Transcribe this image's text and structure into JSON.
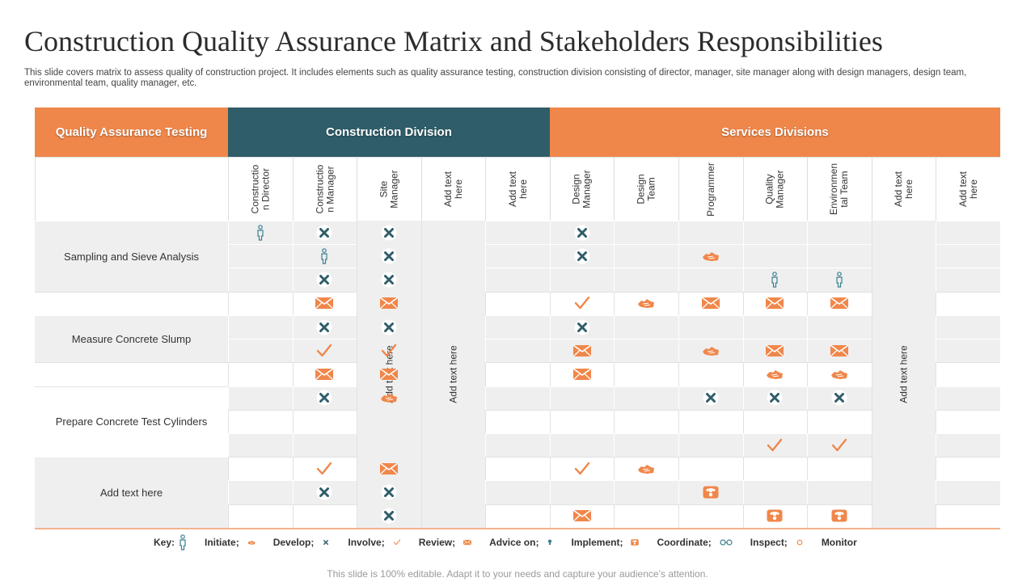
{
  "title": "Construction Quality Assurance Matrix and Stakeholders Responsibilities",
  "subtitle": "This slide covers matrix to assess quality of construction project. It includes elements such as quality assurance testing, construction division consisting of director, manager, site manager  along with design managers, design team, environmental team, quality manager, etc.",
  "colors": {
    "orange": "#f0874a",
    "teal": "#2f5d69",
    "gray_row": "#efefef"
  },
  "header": {
    "qa_testing": "Quality Assurance  Testing",
    "construction_division": "Construction Division",
    "services_divisions": "Services Divisions"
  },
  "roles": [
    "Constructio\nn Director",
    "Constructio\nn Manager",
    "Site\nManager",
    "Add text\nhere",
    "Add text\nhere",
    "Design\nManager",
    "Design\nTeam",
    "Programmer",
    "Quality\nManager",
    "Environmen\ntal Team",
    "Add text\nhere",
    "Add text\nhere"
  ],
  "row_labels": [
    "Sampling and Sieve Analysis",
    "Measure Concrete Slump",
    "Prepare Concrete Test Cylinders",
    "Add text here"
  ],
  "merged_columns": [
    "Add text here",
    "Add text here",
    "Add text here"
  ],
  "symbols": [
    {
      "row": 0,
      "col": 0,
      "icon": "person-icon"
    },
    {
      "row": 0,
      "col": 1,
      "icon": "cross-icon"
    },
    {
      "row": 0,
      "col": 2,
      "icon": "cross-icon"
    },
    {
      "row": 0,
      "col": 5,
      "icon": "cross-icon"
    },
    {
      "row": 1,
      "col": 1,
      "icon": "person-icon"
    },
    {
      "row": 1,
      "col": 2,
      "icon": "cross-icon"
    },
    {
      "row": 1,
      "col": 5,
      "icon": "cross-icon"
    },
    {
      "row": 1,
      "col": 7,
      "icon": "hand-icon"
    },
    {
      "row": 2,
      "col": 1,
      "icon": "cross-icon"
    },
    {
      "row": 2,
      "col": 2,
      "icon": "cross-icon"
    },
    {
      "row": 2,
      "col": 8,
      "icon": "person-icon"
    },
    {
      "row": 2,
      "col": 9,
      "icon": "person-icon"
    },
    {
      "row": 3,
      "col": 1,
      "icon": "envelope-icon"
    },
    {
      "row": 3,
      "col": 2,
      "icon": "envelope-icon"
    },
    {
      "row": 3,
      "col": 5,
      "icon": "check-icon"
    },
    {
      "row": 3,
      "col": 6,
      "icon": "hand-icon"
    },
    {
      "row": 3,
      "col": 7,
      "icon": "envelope-icon"
    },
    {
      "row": 3,
      "col": 8,
      "icon": "envelope-icon"
    },
    {
      "row": 3,
      "col": 9,
      "icon": "envelope-icon"
    },
    {
      "row": 4,
      "col": 1,
      "icon": "cross-icon"
    },
    {
      "row": 4,
      "col": 2,
      "icon": "cross-icon"
    },
    {
      "row": 4,
      "col": 5,
      "icon": "cross-icon"
    },
    {
      "row": 5,
      "col": 1,
      "icon": "check-icon"
    },
    {
      "row": 5,
      "col": 2,
      "icon": "check-icon"
    },
    {
      "row": 5,
      "col": 5,
      "icon": "envelope-icon"
    },
    {
      "row": 5,
      "col": 7,
      "icon": "hand-icon"
    },
    {
      "row": 5,
      "col": 8,
      "icon": "envelope-icon"
    },
    {
      "row": 5,
      "col": 9,
      "icon": "envelope-icon"
    },
    {
      "row": 6,
      "col": 1,
      "icon": "envelope-icon"
    },
    {
      "row": 6,
      "col": 2,
      "icon": "envelope-icon"
    },
    {
      "row": 6,
      "col": 5,
      "icon": "envelope-icon"
    },
    {
      "row": 6,
      "col": 8,
      "icon": "hand-icon"
    },
    {
      "row": 6,
      "col": 9,
      "icon": "hand-icon"
    },
    {
      "row": 7,
      "col": 1,
      "icon": "cross-icon"
    },
    {
      "row": 7,
      "col": 2,
      "icon": "hand-icon"
    },
    {
      "row": 7,
      "col": 7,
      "icon": "cross-icon"
    },
    {
      "row": 7,
      "col": 8,
      "icon": "cross-icon"
    },
    {
      "row": 7,
      "col": 9,
      "icon": "cross-icon"
    },
    {
      "row": 9,
      "col": 8,
      "icon": "check-icon"
    },
    {
      "row": 9,
      "col": 9,
      "icon": "check-icon"
    },
    {
      "row": 10,
      "col": 1,
      "icon": "check-icon"
    },
    {
      "row": 10,
      "col": 2,
      "icon": "envelope-icon"
    },
    {
      "row": 10,
      "col": 5,
      "icon": "check-icon"
    },
    {
      "row": 10,
      "col": 6,
      "icon": "hand-icon"
    },
    {
      "row": 11,
      "col": 1,
      "icon": "cross-icon"
    },
    {
      "row": 11,
      "col": 2,
      "icon": "cross-icon"
    },
    {
      "row": 11,
      "col": 7,
      "icon": "phone-icon"
    },
    {
      "row": 12,
      "col": 2,
      "icon": "cross-icon"
    },
    {
      "row": 12,
      "col": 5,
      "icon": "envelope-icon"
    },
    {
      "row": 12,
      "col": 8,
      "icon": "phone-icon"
    },
    {
      "row": 12,
      "col": 9,
      "icon": "phone-icon"
    }
  ],
  "key": {
    "label": "Key:",
    "items": [
      {
        "label": "Initiate;",
        "icon": "hand-icon"
      },
      {
        "label": "Develop;",
        "icon": "cross-icon"
      },
      {
        "label": "Involve;",
        "icon": "check-icon"
      },
      {
        "label": "Review;",
        "icon": "envelope-icon"
      },
      {
        "label": "Advice on;",
        "icon": "bulb-icon"
      },
      {
        "label": "Implement;",
        "icon": "phone-icon"
      },
      {
        "label": "Coordinate;",
        "icon": "glasses-icon"
      },
      {
        "label": "Inspect;",
        "icon": "dot-icon"
      },
      {
        "label": "Monitor",
        "icon": ""
      }
    ]
  },
  "footer": "This slide is 100% editable. Adapt it to your needs and capture your audience’s attention."
}
